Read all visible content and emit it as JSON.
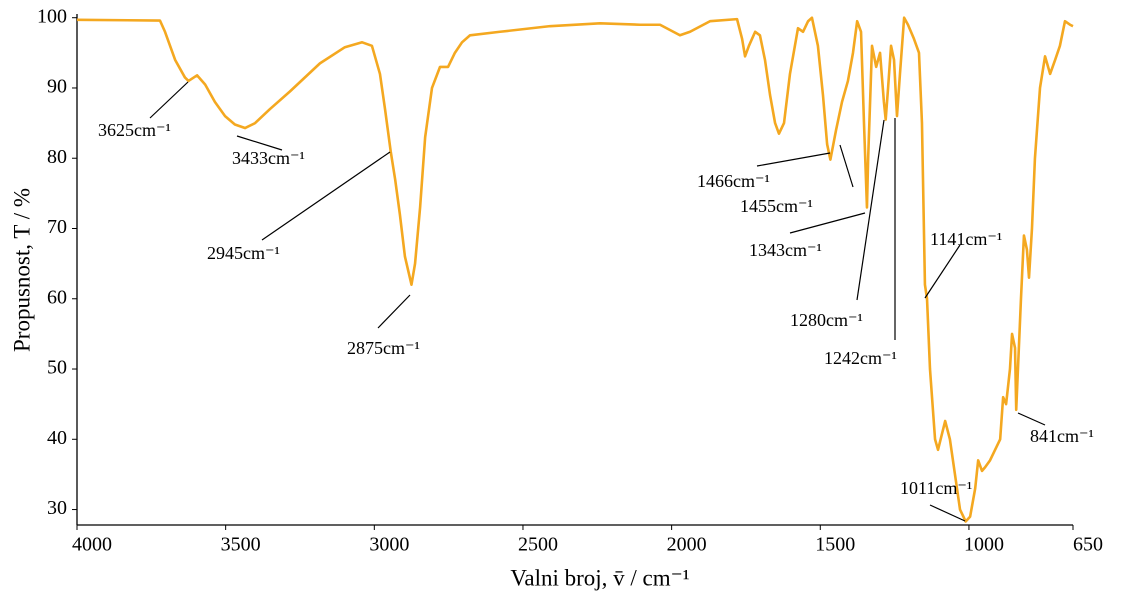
{
  "chart_data": {
    "type": "line",
    "x_label": "Valni broj, v̄  /  cm⁻¹",
    "y_label": "Propusnost, T  /  %",
    "x": [
      4000,
      3721,
      3704,
      3670,
      3637,
      3625,
      3596,
      3569,
      3536,
      3502,
      3469,
      3435,
      3401,
      3351,
      3284,
      3183,
      3099,
      3041,
      3008,
      2981,
      2964,
      2945,
      2930,
      2914,
      2897,
      2875,
      2863,
      2846,
      2829,
      2806,
      2779,
      2752,
      2729,
      2705,
      2678,
      2577,
      2409,
      2241,
      2106,
      2039,
      1972,
      1938,
      1871,
      1780,
      1763,
      1753,
      1740,
      1719,
      1703,
      1686,
      1669,
      1652,
      1639,
      1622,
      1602,
      1575,
      1558,
      1541,
      1528,
      1508,
      1491,
      1477,
      1466,
      1447,
      1427,
      1407,
      1390,
      1376,
      1363,
      1353,
      1343,
      1339,
      1326,
      1312,
      1299,
      1286,
      1280,
      1272,
      1262,
      1252,
      1242,
      1232,
      1218,
      1205,
      1185,
      1168,
      1158,
      1148,
      1141,
      1131,
      1114,
      1104,
      1080,
      1064,
      1047,
      1030,
      1011,
      996,
      979,
      969,
      956,
      946,
      929,
      912,
      895,
      885,
      875,
      862,
      855,
      845,
      841,
      825,
      815,
      805,
      798,
      788,
      778,
      761,
      744,
      727,
      710,
      694,
      677,
      660,
      650
    ],
    "series": [
      {
        "color": "#f4a820",
        "values": [
          99.7,
          99.6,
          98,
          94,
          91.5,
          91,
          91.8,
          90.5,
          88,
          86,
          84.8,
          84.3,
          85,
          87,
          89.5,
          93.5,
          95.8,
          96.5,
          96,
          92,
          87,
          81,
          77,
          72,
          66,
          62,
          65,
          73,
          83,
          90,
          93,
          93,
          95,
          96.5,
          97.5,
          98,
          98.8,
          99.2,
          99,
          99,
          97.5,
          98,
          99.5,
          99.8,
          97,
          94.5,
          96,
          98,
          97.5,
          94,
          89,
          85,
          83.5,
          85,
          92,
          98.5,
          98,
          99.5,
          100,
          96,
          89,
          82,
          79.8,
          84,
          88,
          91,
          95,
          99.5,
          98,
          85,
          73,
          80,
          96,
          93,
          95,
          88,
          85.5,
          90,
          96,
          94,
          86,
          92,
          100,
          99,
          97,
          95,
          85,
          62,
          60,
          50,
          40,
          38.5,
          42.6,
          40,
          35,
          30,
          28.3,
          29,
          33,
          37,
          35.5,
          36,
          37,
          38.5,
          40,
          46,
          45,
          50,
          55,
          53,
          44.2,
          60,
          69,
          67,
          63,
          70,
          80,
          90,
          94.5,
          92,
          94,
          96,
          99.5,
          99,
          98.8
        ]
      }
    ],
    "xlim": [
      4000,
      650
    ],
    "ylim": [
      27.8,
      100.5
    ],
    "xticks": [
      4000,
      3500,
      3000,
      2500,
      2000,
      1500,
      1000,
      650
    ],
    "yticks": [
      30,
      40,
      50,
      60,
      70,
      80,
      90,
      100
    ],
    "annotations": [
      "3625cm⁻¹",
      "3433cm⁻¹",
      "2945cm⁻¹",
      "2875cm⁻¹",
      "1466cm⁻¹",
      "1455cm⁻¹",
      "1343cm⁻¹",
      "1280cm⁻¹",
      "1242cm⁻¹",
      "1141cm⁻¹",
      "841cm⁻¹",
      "1011cm⁻¹"
    ]
  }
}
